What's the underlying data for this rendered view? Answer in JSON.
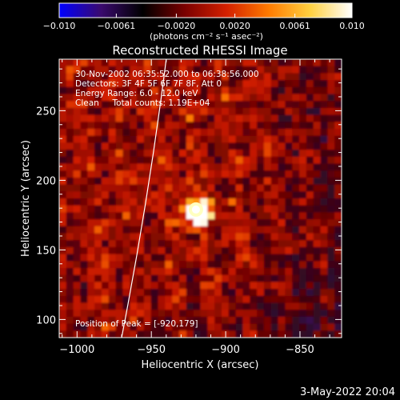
{
  "chart_data": {
    "type": "heatmap",
    "title": "Reconstructed RHESSI Image",
    "xlabel": "Heliocentric X (arcsec)",
    "ylabel": "Heliocentric Y (arcsec)",
    "xlim": [
      -1012,
      -822
    ],
    "ylim": [
      87,
      287
    ],
    "x_ticks": [
      -1000,
      -950,
      -900,
      -850
    ],
    "y_ticks": [
      100,
      150,
      200,
      250
    ],
    "x_tick_labels": [
      "−1000",
      "−950",
      "−900",
      "−850"
    ],
    "y_tick_labels": [
      "100",
      "150",
      "200",
      "250"
    ],
    "colorbar": {
      "range": [
        -0.01,
        0.01
      ],
      "tick_values": [
        -0.01,
        -0.0061,
        -0.002,
        0.002,
        0.0061,
        0.01
      ],
      "tick_labels": [
        "−0.010",
        "−0.0061",
        "−0.0020",
        "0.0020",
        "0.0061",
        "0.010"
      ],
      "unit_label": "(photons cm⁻² s⁻¹ asec⁻²)",
      "colors": [
        "#0000ff",
        "#3a0a6e",
        "#000000",
        "#7a0000",
        "#d42000",
        "#ff7a00",
        "#ffd040",
        "#ffffff"
      ]
    },
    "info_lines": [
      "30-Nov-2002 06:35:52.000 to 06:38:56.000",
      "Detectors: 3F 4F 5F 6F 7F 8F, Att 0",
      "Energy Range: 6.0 - 12.0 keV",
      "Clean     Total counts: 1.19E+04"
    ],
    "peak_label": "Position of Peak = [-920,179]",
    "peak": {
      "x": -920,
      "y": 179
    },
    "limb": {
      "x_at_ymin": -970,
      "x_at_ymax": -940
    },
    "date_stamp": "3-May-2022 20:04"
  }
}
